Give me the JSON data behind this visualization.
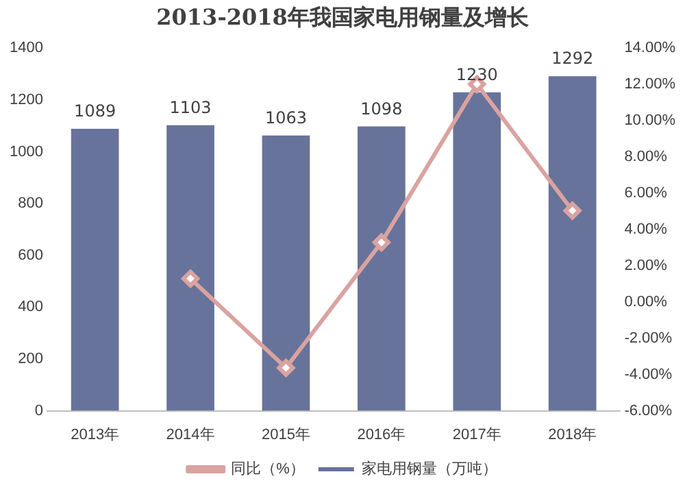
{
  "chart_data": {
    "type": "bar",
    "title": "2013-2018年我国家电用钢量及增长",
    "categories": [
      "2013年",
      "2014年",
      "2015年",
      "2016年",
      "2017年",
      "2018年"
    ],
    "series": [
      {
        "name": "家电用钢量（万吨）",
        "color": "#68739b",
        "values": [
          1089,
          1103,
          1063,
          1098,
          1230,
          1292
        ],
        "value_labels": [
          "1089",
          "1103",
          "1063",
          "1098",
          "1230",
          "1292"
        ]
      },
      {
        "name": "同比（%）",
        "type": "line",
        "axis": "y2",
        "color": "#d9a3a0",
        "values": [
          null,
          1.29,
          -3.63,
          3.29,
          12.02,
          5.04
        ],
        "marker": "diamond"
      }
    ],
    "ylim": [
      0,
      1400
    ],
    "yticks": [
      0,
      200,
      400,
      600,
      800,
      1000,
      1200,
      1400
    ],
    "y2lim": [
      -6,
      14
    ],
    "y2ticks": [
      {
        "value": -6,
        "label": "-6.00%"
      },
      {
        "value": -4,
        "label": "-4.00%"
      },
      {
        "value": -2,
        "label": "-2.00%"
      },
      {
        "value": 0,
        "label": "0.00%"
      },
      {
        "value": 2,
        "label": "2.00%"
      },
      {
        "value": 4,
        "label": "4.00%"
      },
      {
        "value": 6,
        "label": "6.00%"
      },
      {
        "value": 8,
        "label": "8.00%"
      },
      {
        "value": 10,
        "label": "10.00%"
      },
      {
        "value": 12,
        "label": "12.00%"
      },
      {
        "value": 14,
        "label": "14.00%"
      }
    ],
    "grid": false,
    "legend": "bottom"
  }
}
